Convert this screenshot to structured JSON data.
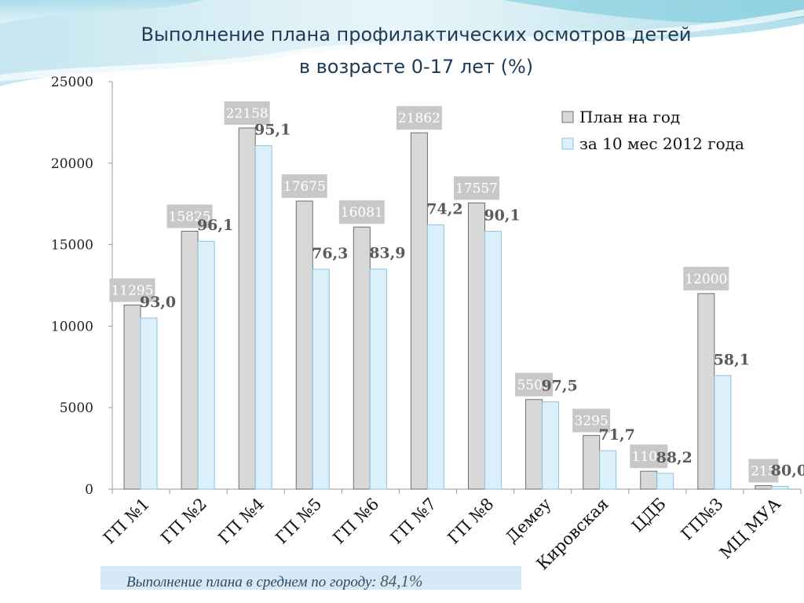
{
  "title_line1": "Выполнение плана профилактических осмотров детей",
  "title_line2": "в возрасте 0-17 лет (%)",
  "footer": {
    "label": "Выполнение плана в среднем по городу:",
    "value": "84,1%"
  },
  "colors": {
    "plan": "#d8d8d8",
    "plan_stroke": "#6e6e6e",
    "actual": "#dcf0fb",
    "actual_stroke": "#8cc4dc",
    "value_box": "#c8c8c8",
    "value_text": "#ffffff",
    "percent_text": "#5a5a5a"
  },
  "chart_data": {
    "type": "bar",
    "title": "Выполнение плана профилактических осмотров детей в возрасте 0-17 лет (%)",
    "categories": [
      "ГП №1",
      "ГП №2",
      "ГП №4",
      "ГП №5",
      "ГП №6",
      "ГП  №7",
      "ГП №8",
      "Демеу",
      "Кировская",
      "ЦДБ",
      "ГП№3",
      "МЦ МУА"
    ],
    "series": [
      {
        "name": "План на год",
        "values": [
          11295,
          15825,
          22158,
          17675,
          16081,
          21862,
          17557,
          5500,
          3295,
          1100,
          12000,
          215
        ]
      },
      {
        "name": "за 10 мес 2012 года",
        "values": [
          10500,
          15210,
          21070,
          13490,
          13500,
          16220,
          15820,
          5360,
          2360,
          970,
          6970,
          172
        ]
      }
    ],
    "plan_labels": [
      "11295",
      "15825",
      "22158",
      "17675",
      "16081",
      "21862",
      "17557",
      "5500",
      "3295",
      "1100",
      "12000",
      "215"
    ],
    "percent_labels": [
      "93,0",
      "96,1",
      "95,1",
      "76,3",
      "83,9",
      "74,2",
      "90,1",
      "97,5",
      "71,7",
      "88,2",
      "58,1",
      "80,0"
    ],
    "yticks": [
      0,
      5000,
      10000,
      15000,
      20000,
      25000
    ],
    "ylim": [
      0,
      25000
    ],
    "grid": false,
    "legend": "top-right"
  }
}
